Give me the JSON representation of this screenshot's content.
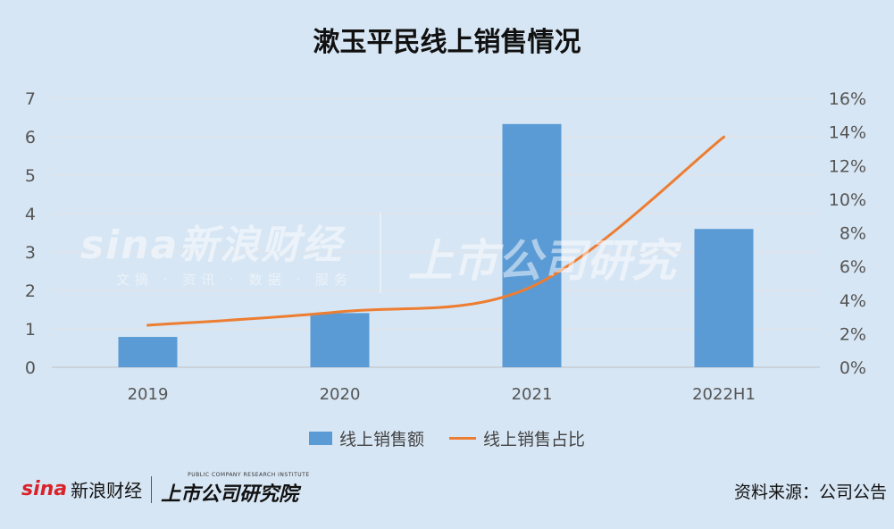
{
  "chart_data": {
    "type": "bar",
    "title": "漱玉平民线上销售情况",
    "categories": [
      "2019",
      "2020",
      "2021",
      "2022H1"
    ],
    "series": [
      {
        "name": "线上销售额",
        "type": "bar",
        "axis": "left",
        "values": [
          0.79,
          1.41,
          6.33,
          3.6
        ],
        "color": "#5b9bd5"
      },
      {
        "name": "线上销售占比",
        "type": "line",
        "axis": "right",
        "values": [
          0.025,
          0.033,
          0.048,
          0.137
        ],
        "color": "#ed7d31"
      }
    ],
    "y_left": {
      "min": 0,
      "max": 7,
      "ticks": [
        "0",
        "1",
        "2",
        "3",
        "4",
        "5",
        "6",
        "7"
      ]
    },
    "y_right": {
      "min": 0,
      "max": 0.16,
      "ticks": [
        "0%",
        "2%",
        "4%",
        "6%",
        "8%",
        "10%",
        "12%",
        "14%",
        "16%"
      ]
    },
    "grid": true,
    "legend_position": "bottom"
  },
  "watermark": {
    "brand": "sina新浪财经",
    "sub": "文摘 · 资讯 · 数据 · 服务",
    "right": "上市公司研究"
  },
  "footer": {
    "logo_sina": "sina",
    "logo_cn": "新浪财经",
    "logo_research_sub": "PUBLIC COMPANY RESEARCH INSTITUTE",
    "logo_research": "上市公司研究院",
    "source": "资料来源：公司公告"
  }
}
